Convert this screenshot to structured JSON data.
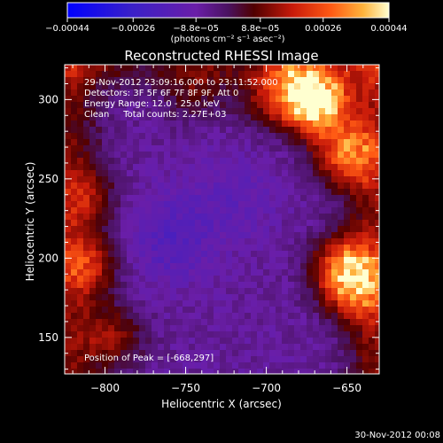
{
  "chart_data": {
    "type": "heatmap",
    "title": "Reconstructed RHESSI Image",
    "xlabel": "Heliocentric X (arcsec)",
    "ylabel": "Heliocentric Y (arcsec)",
    "xlim": [
      -825,
      -630
    ],
    "ylim": [
      127,
      322
    ],
    "x_ticks": [
      -800,
      -750,
      -700,
      -650
    ],
    "y_ticks": [
      150,
      200,
      250,
      300
    ],
    "x_tick_labels": [
      "−800",
      "−750",
      "−700",
      "−650"
    ],
    "y_tick_labels": [
      "150",
      "200",
      "250",
      "300"
    ],
    "colorbar": {
      "range": [
        -0.00044,
        0.00044
      ],
      "ticks": [
        -0.00044,
        -0.00026,
        -8.8e-05,
        8.8e-05,
        0.00026,
        0.00044
      ],
      "tick_labels": [
        "−0.00044",
        "−0.00026",
        "−8.8e−05",
        "8.8e−05",
        "0.00026",
        "0.00044"
      ],
      "unit_label": "(photons cm⁻² s⁻¹ asec⁻²)"
    },
    "annotations": [
      "29-Nov-2012 23:09:16.000 to 23:11:52.000",
      "Detectors: 3F 5F 6F 7F 8F 9F, Att 0",
      "Energy Range: 12.0 - 25.0 keV",
      "Clean     Total counts: 2.27E+03"
    ],
    "peak_label": "Position of Peak = [-668,297]",
    "peak": [
      -668,
      297
    ],
    "hot_spots": [
      {
        "x": -668,
        "y": 297,
        "value": 0.00044
      },
      {
        "x": -650,
        "y": 265,
        "value": 0.0003
      },
      {
        "x": -652,
        "y": 195,
        "value": 0.00028
      },
      {
        "x": -680,
        "y": 310,
        "value": 0.00025
      },
      {
        "x": -645,
        "y": 180,
        "value": 0.00022
      },
      {
        "x": -812,
        "y": 195,
        "value": 0.00018
      },
      {
        "x": -795,
        "y": 150,
        "value": 0.00015
      },
      {
        "x": -812,
        "y": 238,
        "value": 0.00012
      },
      {
        "x": -700,
        "y": 300,
        "value": 0.00012
      },
      {
        "x": -745,
        "y": 305,
        "value": 0.0001
      }
    ],
    "cold_spots": [
      {
        "x": -760,
        "y": 212,
        "value": -0.00012
      },
      {
        "x": -720,
        "y": 240,
        "value": -8e-05
      }
    ],
    "background_value": -7e-05,
    "colormap": "RHESSI blue-purple-red-yellow-white"
  },
  "footer": {
    "timestamp": "30-Nov-2012 00:08"
  }
}
